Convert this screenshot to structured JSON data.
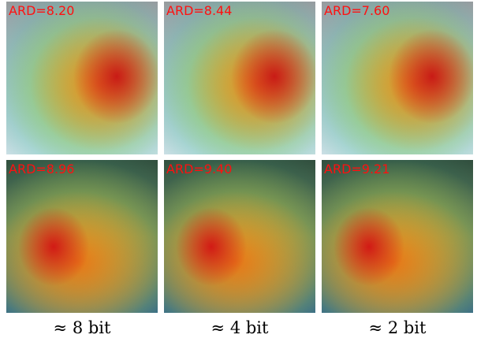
{
  "panels": [
    {
      "label": "ARD=8.20"
    },
    {
      "label": "ARD=8.44"
    },
    {
      "label": "ARD=7.60"
    },
    {
      "label": "ARD=8.96"
    },
    {
      "label": "ARD=9.40"
    },
    {
      "label": "ARD=9.21"
    }
  ],
  "captions": [
    "≈ 8 bit",
    "≈ 4 bit",
    "≈ 2 bit"
  ]
}
